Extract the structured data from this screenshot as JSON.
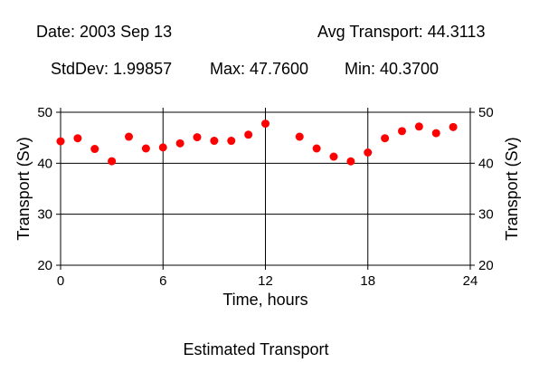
{
  "header": {
    "date": "Date: 2003 Sep 13",
    "avg": "Avg Transport: 44.3113",
    "stddev": "StdDev: 1.99857",
    "max": "Max: 47.7600",
    "min": "Min: 40.3700"
  },
  "chart_data": {
    "type": "scatter",
    "title": "Estimated Transport",
    "xlabel": "Time, hours",
    "ylabel": "Transport (Sv)",
    "xlim": [
      0,
      24
    ],
    "ylim": [
      20,
      50
    ],
    "xticks": [
      0,
      6,
      12,
      18,
      24
    ],
    "yticks": [
      20,
      30,
      40,
      50
    ],
    "grid": true,
    "marker_color": "#ff0000",
    "x": [
      0,
      1,
      2,
      3,
      4,
      5,
      6,
      7,
      8,
      9,
      10,
      11,
      12,
      14,
      15,
      16,
      17,
      18,
      19,
      20,
      21,
      22,
      23
    ],
    "y": [
      44.3,
      44.9,
      42.8,
      40.4,
      45.2,
      42.9,
      43.1,
      43.9,
      45.1,
      44.4,
      44.4,
      45.6,
      47.76,
      45.2,
      42.9,
      41.3,
      40.37,
      42.1,
      44.9,
      46.3,
      47.2,
      45.9,
      47.1
    ]
  }
}
